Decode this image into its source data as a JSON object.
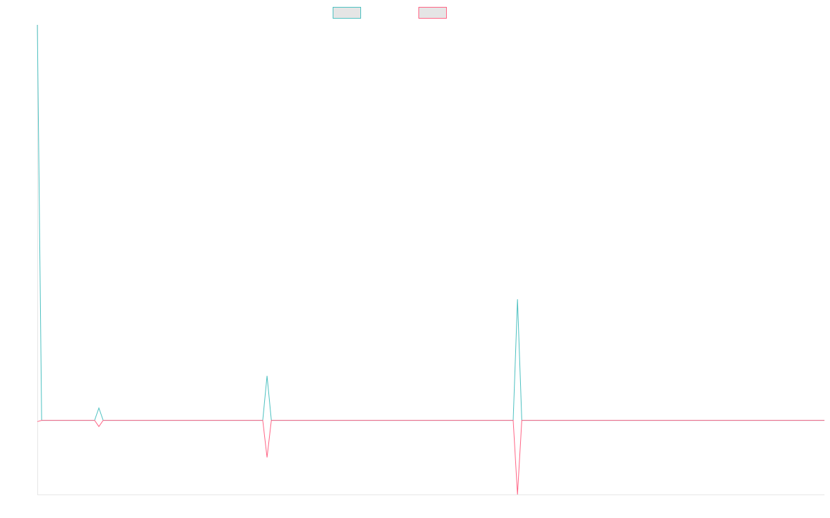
{
  "chart_data": {
    "type": "line",
    "title": "",
    "xlabel": "",
    "ylabel": "",
    "grid": false,
    "legend": {
      "position": "top",
      "entries": [
        {
          "name": "",
          "color": "#4bc0c0"
        },
        {
          "name": "",
          "color": "#ff6384"
        }
      ]
    },
    "ylim": [
      -30,
      160
    ],
    "xlim": [
      0,
      1100
    ],
    "series": [
      {
        "name": "",
        "color": "#4bc0c0",
        "points": [
          [
            0,
            160
          ],
          [
            6,
            0
          ],
          [
            80,
            0
          ],
          [
            86,
            5
          ],
          [
            92,
            0
          ],
          [
            315,
            0
          ],
          [
            321,
            18
          ],
          [
            327,
            0
          ],
          [
            665,
            0
          ],
          [
            671,
            49
          ],
          [
            677,
            0
          ],
          [
            1100,
            0
          ]
        ]
      },
      {
        "name": "",
        "color": "#ff6384",
        "points": [
          [
            0,
            -0.5
          ],
          [
            6,
            0
          ],
          [
            80,
            0
          ],
          [
            86,
            -2.5
          ],
          [
            92,
            0
          ],
          [
            315,
            0
          ],
          [
            321,
            -15
          ],
          [
            327,
            0
          ],
          [
            665,
            0
          ],
          [
            671,
            -30
          ],
          [
            677,
            0
          ],
          [
            1100,
            0
          ]
        ]
      }
    ]
  }
}
